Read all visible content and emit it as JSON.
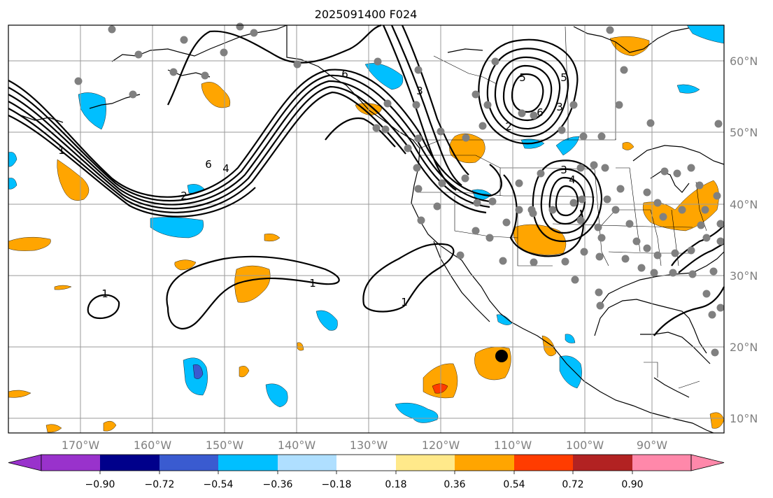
{
  "title": "2025091400 F024",
  "lon_labels": [
    "170°W",
    "160°W",
    "150°W",
    "140°W",
    "130°W",
    "120°W",
    "110°W",
    "100°W",
    "90°W"
  ],
  "lat_labels": [
    "60°N",
    "50°N",
    "40°N",
    "30°N",
    "20°N",
    "10°N"
  ],
  "colorbar": {
    "tick_labels": [
      "−0.90",
      "−0.72",
      "−0.54",
      "−0.36",
      "−0.18",
      "0.18",
      "0.36",
      "0.54",
      "0.72",
      "0.90"
    ],
    "colors": [
      "#9932cc",
      "#00008b",
      "#3a5bd0",
      "#00bfff",
      "#afdfff",
      "#ffffff",
      "#ffe98a",
      "#ffa500",
      "#ff3c00",
      "#b22222",
      "#ff88aa"
    ]
  },
  "contour_labels": [
    "1",
    "2",
    "4",
    "6",
    "1",
    "1",
    "1",
    "5",
    "6",
    "3",
    "4",
    "3",
    "2",
    "6",
    "3",
    "5"
  ],
  "colors": {
    "positive": "#ffa500",
    "negative": "#00bfff",
    "grid": "#9a9a9a",
    "station": "#808080",
    "contour": "#000000"
  }
}
